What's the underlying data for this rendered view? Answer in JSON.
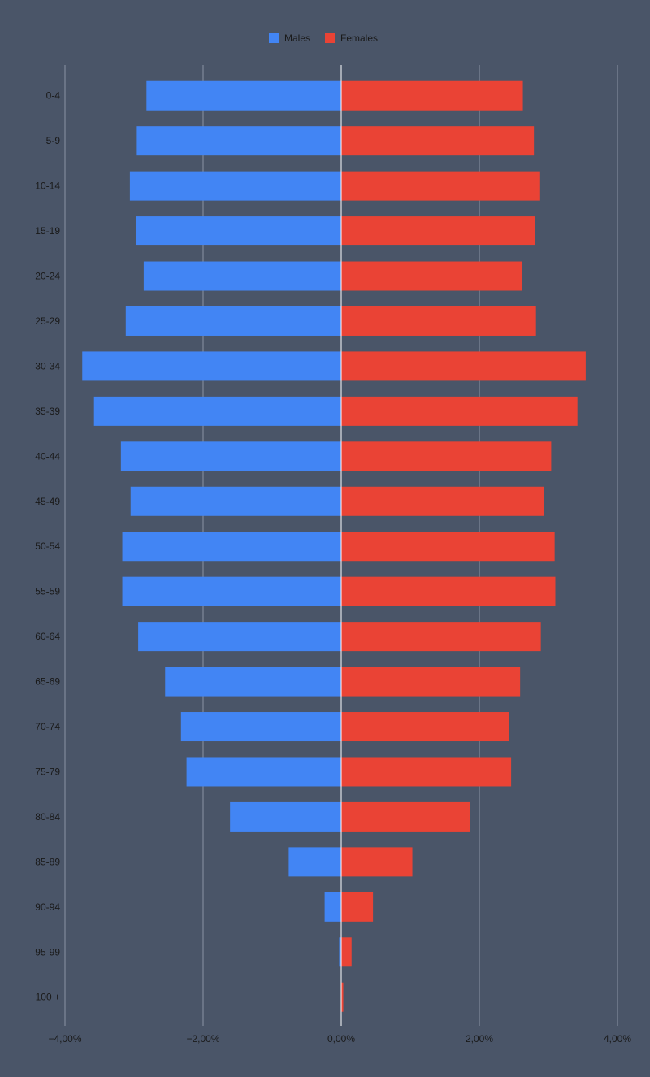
{
  "chart_data": {
    "type": "bar",
    "orientation": "horizontal",
    "categories": [
      "0-4",
      "5-9",
      "10-14",
      "15-19",
      "20-24",
      "25-29",
      "30-34",
      "35-39",
      "40-44",
      "45-49",
      "50-54",
      "55-59",
      "60-64",
      "65-69",
      "70-74",
      "75-79",
      "80-84",
      "85-89",
      "90-94",
      "95-99",
      "100 +"
    ],
    "series": [
      {
        "name": "Males",
        "color": "#4285f4",
        "values": [
          -2.82,
          -2.96,
          -3.06,
          -2.97,
          -2.86,
          -3.12,
          -3.75,
          -3.58,
          -3.19,
          -3.05,
          -3.17,
          -3.17,
          -2.94,
          -2.55,
          -2.32,
          -2.24,
          -1.61,
          -0.76,
          -0.24,
          -0.03,
          0.0
        ]
      },
      {
        "name": "Females",
        "color": "#ea4335",
        "values": [
          2.63,
          2.79,
          2.88,
          2.8,
          2.62,
          2.82,
          3.54,
          3.42,
          3.04,
          2.94,
          3.09,
          3.1,
          2.89,
          2.59,
          2.43,
          2.46,
          1.87,
          1.03,
          0.46,
          0.15,
          0.03
        ]
      }
    ],
    "xticks": [
      -4,
      -2,
      0,
      2,
      4
    ],
    "xtick_labels": [
      "−4,00%",
      "−2,00%",
      "0,00%",
      "2,00%",
      "4,00%"
    ],
    "xlim": [
      -4,
      4
    ],
    "grid": true,
    "legend_position": "top"
  }
}
